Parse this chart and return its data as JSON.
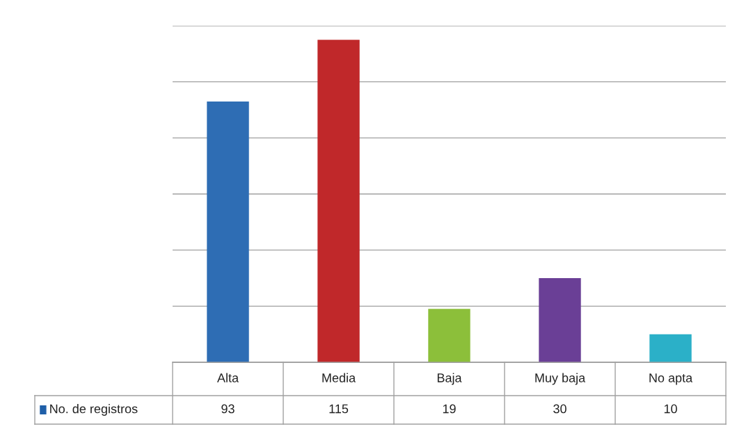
{
  "chart_data": {
    "type": "bar",
    "categories": [
      "Alta",
      "Media",
      "Baja",
      "Muy baja",
      "No apta"
    ],
    "series": [
      {
        "name": "No. de registros",
        "color": "#1f5fa8",
        "colors": [
          "#2e6db4",
          "#c0282a",
          "#8cbf3a",
          "#6a3f96",
          "#2bb0c8"
        ],
        "values": [
          93,
          115,
          19,
          30,
          10
        ]
      }
    ],
    "ylim": [
      0,
      120
    ],
    "yticks": [
      {
        "value": 0,
        "label": null
      },
      {
        "value": 20,
        "label": null
      },
      {
        "value": 40,
        "label": null
      },
      {
        "value": 60,
        "label": null
      },
      {
        "value": 80,
        "label": null
      },
      {
        "value": 100,
        "label": null
      },
      {
        "value": 120,
        "label": null
      }
    ],
    "grid": "y",
    "tick_labels": false,
    "data_labels": true,
    "legend": "bottom"
  }
}
